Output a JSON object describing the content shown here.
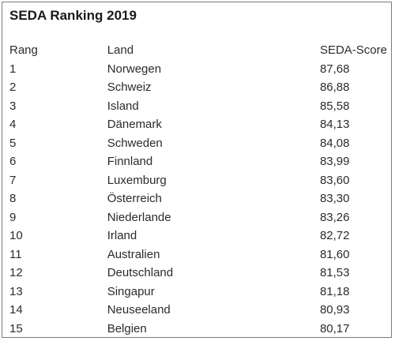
{
  "title": "SEDA Ranking 2019",
  "columns": {
    "rank": "Rang",
    "country": "Land",
    "score": "SEDA-Score"
  },
  "rows": [
    {
      "rank": "1",
      "country": "Norwegen",
      "score": "87,68"
    },
    {
      "rank": "2",
      "country": "Schweiz",
      "score": "86,88"
    },
    {
      "rank": "3",
      "country": "Island",
      "score": "85,58"
    },
    {
      "rank": "4",
      "country": "Dänemark",
      "score": "84,13"
    },
    {
      "rank": "5",
      "country": "Schweden",
      "score": "84,08"
    },
    {
      "rank": "6",
      "country": "Finnland",
      "score": "83,99"
    },
    {
      "rank": "7",
      "country": "Luxemburg",
      "score": "83,60"
    },
    {
      "rank": "8",
      "country": "Österreich",
      "score": "83,30"
    },
    {
      "rank": "9",
      "country": "Niederlande",
      "score": "83,26"
    },
    {
      "rank": "10",
      "country": "Irland",
      "score": "82,72"
    },
    {
      "rank": "11",
      "country": "Australien",
      "score": "81,60"
    },
    {
      "rank": "12",
      "country": "Deutschland",
      "score": "81,53"
    },
    {
      "rank": "13",
      "country": "Singapur",
      "score": "81,18"
    },
    {
      "rank": "14",
      "country": "Neuseeland",
      "score": "80,93"
    },
    {
      "rank": "15",
      "country": "Belgien",
      "score": "80,17"
    }
  ]
}
